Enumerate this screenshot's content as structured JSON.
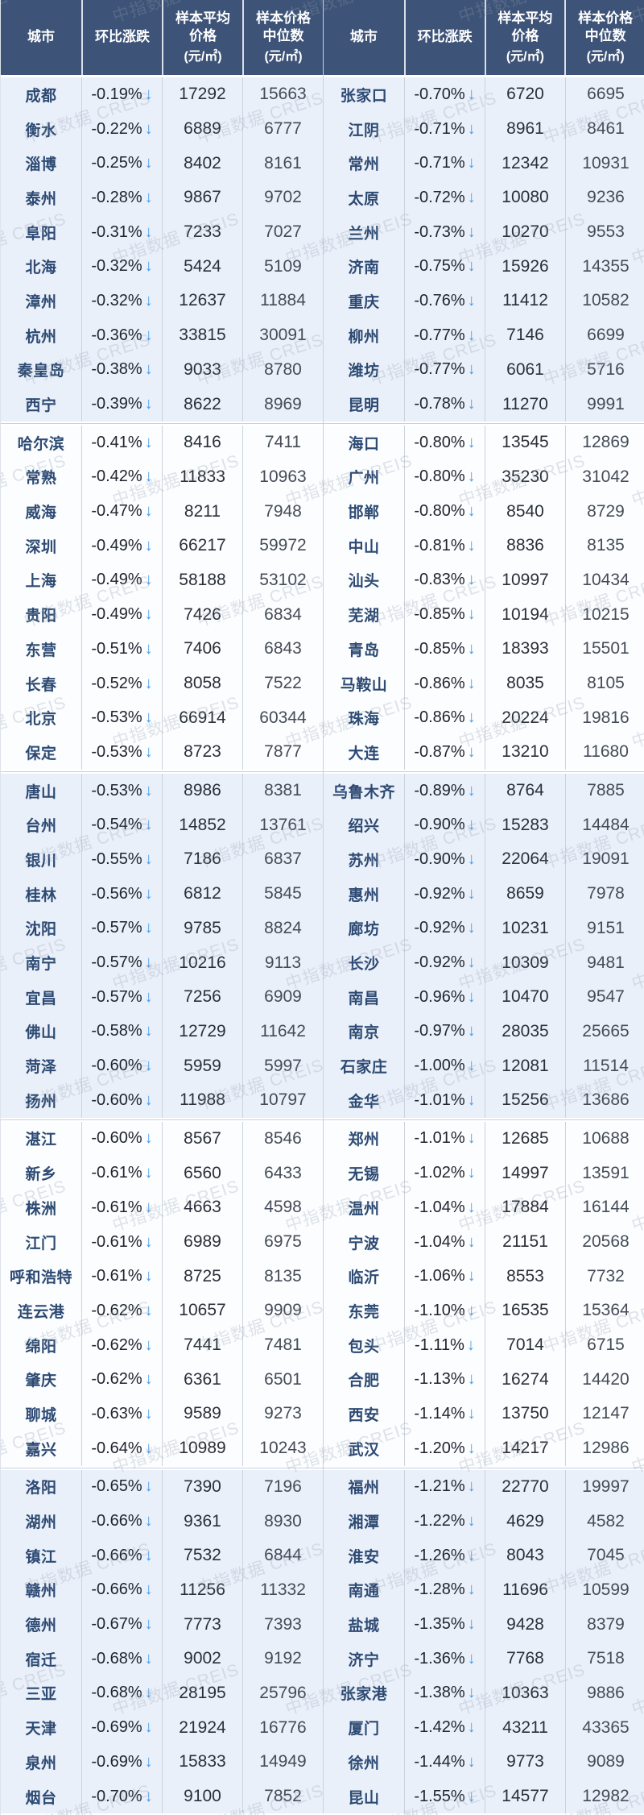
{
  "watermark": "中指数据 CREIS",
  "icons": {
    "down_arrow": "↓"
  },
  "colors": {
    "header_bg": "#3d5378",
    "band_blue": "#eaf0fa",
    "band_white": "#fbfdff",
    "city_text": "#2d4a73",
    "pct_text": "#1f242c",
    "number_text": "#2a2f38",
    "median_text": "#454c57",
    "arrow_blue": "#4a9ce8",
    "watermark_gray": "#93a0b0"
  },
  "header": {
    "city": "城市",
    "change": "环比涨跌",
    "avg_lines": [
      "样本平均",
      "价格",
      "(元/㎡)"
    ],
    "median_lines": [
      "样本价格",
      "中位数",
      "(元/㎡)"
    ]
  },
  "chart_data": {
    "type": "table",
    "columns": [
      "城市",
      "环比涨跌",
      "样本平均价格(元/㎡)",
      "样本价格中位数(元/㎡)"
    ],
    "left_rows": [
      [
        "成都",
        "-0.19%",
        "17292",
        "15663"
      ],
      [
        "衡水",
        "-0.22%",
        "6889",
        "6777"
      ],
      [
        "淄博",
        "-0.25%",
        "8402",
        "8161"
      ],
      [
        "泰州",
        "-0.28%",
        "9867",
        "9702"
      ],
      [
        "阜阳",
        "-0.31%",
        "7233",
        "7027"
      ],
      [
        "北海",
        "-0.32%",
        "5424",
        "5109"
      ],
      [
        "漳州",
        "-0.32%",
        "12637",
        "11884"
      ],
      [
        "杭州",
        "-0.36%",
        "33815",
        "30091"
      ],
      [
        "秦皇岛",
        "-0.38%",
        "9033",
        "8780"
      ],
      [
        "西宁",
        "-0.39%",
        "8622",
        "8969"
      ],
      [
        "哈尔滨",
        "-0.41%",
        "8416",
        "7411"
      ],
      [
        "常熟",
        "-0.42%",
        "11833",
        "10963"
      ],
      [
        "威海",
        "-0.47%",
        "8211",
        "7948"
      ],
      [
        "深圳",
        "-0.49%",
        "66217",
        "59972"
      ],
      [
        "上海",
        "-0.49%",
        "58188",
        "53102"
      ],
      [
        "贵阳",
        "-0.49%",
        "7426",
        "6834"
      ],
      [
        "东营",
        "-0.51%",
        "7406",
        "6843"
      ],
      [
        "长春",
        "-0.52%",
        "8058",
        "7522"
      ],
      [
        "北京",
        "-0.53%",
        "66914",
        "60344"
      ],
      [
        "保定",
        "-0.53%",
        "8723",
        "7877"
      ],
      [
        "唐山",
        "-0.53%",
        "8986",
        "8381"
      ],
      [
        "台州",
        "-0.54%",
        "14852",
        "13761"
      ],
      [
        "银川",
        "-0.55%",
        "7186",
        "6837"
      ],
      [
        "桂林",
        "-0.56%",
        "6812",
        "5845"
      ],
      [
        "沈阳",
        "-0.57%",
        "9785",
        "8824"
      ],
      [
        "南宁",
        "-0.57%",
        "10216",
        "9113"
      ],
      [
        "宜昌",
        "-0.57%",
        "7256",
        "6909"
      ],
      [
        "佛山",
        "-0.58%",
        "12729",
        "11642"
      ],
      [
        "菏泽",
        "-0.60%",
        "5959",
        "5997"
      ],
      [
        "扬州",
        "-0.60%",
        "11988",
        "10797"
      ],
      [
        "湛江",
        "-0.60%",
        "8567",
        "8546"
      ],
      [
        "新乡",
        "-0.61%",
        "6560",
        "6433"
      ],
      [
        "株洲",
        "-0.61%",
        "4663",
        "4598"
      ],
      [
        "江门",
        "-0.61%",
        "6989",
        "6975"
      ],
      [
        "呼和浩特",
        "-0.61%",
        "8725",
        "8135"
      ],
      [
        "连云港",
        "-0.62%",
        "10657",
        "9909"
      ],
      [
        "绵阳",
        "-0.62%",
        "7441",
        "7481"
      ],
      [
        "肇庆",
        "-0.62%",
        "6361",
        "6501"
      ],
      [
        "聊城",
        "-0.63%",
        "9589",
        "9273"
      ],
      [
        "嘉兴",
        "-0.64%",
        "10989",
        "10243"
      ],
      [
        "洛阳",
        "-0.65%",
        "7390",
        "7196"
      ],
      [
        "湖州",
        "-0.66%",
        "9361",
        "8930"
      ],
      [
        "镇江",
        "-0.66%",
        "7532",
        "6844"
      ],
      [
        "赣州",
        "-0.66%",
        "11256",
        "11332"
      ],
      [
        "德州",
        "-0.67%",
        "7773",
        "7393"
      ],
      [
        "宿迁",
        "-0.68%",
        "9002",
        "9192"
      ],
      [
        "三亚",
        "-0.68%",
        "28195",
        "25796"
      ],
      [
        "天津",
        "-0.69%",
        "21924",
        "16776"
      ],
      [
        "泉州",
        "-0.69%",
        "15833",
        "14949"
      ],
      [
        "烟台",
        "-0.70%",
        "9100",
        "7852"
      ]
    ],
    "right_rows": [
      [
        "张家口",
        "-0.70%",
        "6720",
        "6695"
      ],
      [
        "江阴",
        "-0.71%",
        "8961",
        "8461"
      ],
      [
        "常州",
        "-0.71%",
        "12342",
        "10931"
      ],
      [
        "太原",
        "-0.72%",
        "10080",
        "9236"
      ],
      [
        "兰州",
        "-0.73%",
        "10270",
        "9553"
      ],
      [
        "济南",
        "-0.75%",
        "15926",
        "14355"
      ],
      [
        "重庆",
        "-0.76%",
        "11412",
        "10582"
      ],
      [
        "柳州",
        "-0.77%",
        "7146",
        "6699"
      ],
      [
        "潍坊",
        "-0.77%",
        "6061",
        "5716"
      ],
      [
        "昆明",
        "-0.78%",
        "11270",
        "9991"
      ],
      [
        "海口",
        "-0.80%",
        "13545",
        "12869"
      ],
      [
        "广州",
        "-0.80%",
        "35230",
        "31042"
      ],
      [
        "邯郸",
        "-0.80%",
        "8540",
        "8729"
      ],
      [
        "中山",
        "-0.81%",
        "8836",
        "8135"
      ],
      [
        "汕头",
        "-0.83%",
        "10997",
        "10434"
      ],
      [
        "芜湖",
        "-0.85%",
        "10194",
        "10215"
      ],
      [
        "青岛",
        "-0.85%",
        "18393",
        "15501"
      ],
      [
        "马鞍山",
        "-0.86%",
        "8035",
        "8105"
      ],
      [
        "珠海",
        "-0.86%",
        "20224",
        "19816"
      ],
      [
        "大连",
        "-0.87%",
        "13210",
        "11680"
      ],
      [
        "乌鲁木齐",
        "-0.89%",
        "8764",
        "7885"
      ],
      [
        "绍兴",
        "-0.90%",
        "15283",
        "14484"
      ],
      [
        "苏州",
        "-0.90%",
        "22064",
        "19091"
      ],
      [
        "惠州",
        "-0.92%",
        "8659",
        "7978"
      ],
      [
        "廊坊",
        "-0.92%",
        "10231",
        "9151"
      ],
      [
        "长沙",
        "-0.92%",
        "10309",
        "9481"
      ],
      [
        "南昌",
        "-0.96%",
        "10470",
        "9547"
      ],
      [
        "南京",
        "-0.97%",
        "28035",
        "25665"
      ],
      [
        "石家庄",
        "-1.00%",
        "12081",
        "11514"
      ],
      [
        "金华",
        "-1.01%",
        "15256",
        "13686"
      ],
      [
        "郑州",
        "-1.01%",
        "12685",
        "10688"
      ],
      [
        "无锡",
        "-1.02%",
        "14997",
        "13591"
      ],
      [
        "温州",
        "-1.04%",
        "17884",
        "16144"
      ],
      [
        "宁波",
        "-1.04%",
        "21151",
        "20568"
      ],
      [
        "临沂",
        "-1.06%",
        "8553",
        "7732"
      ],
      [
        "东莞",
        "-1.10%",
        "16535",
        "15364"
      ],
      [
        "包头",
        "-1.11%",
        "7014",
        "6715"
      ],
      [
        "合肥",
        "-1.13%",
        "16274",
        "14420"
      ],
      [
        "西安",
        "-1.14%",
        "13750",
        "12147"
      ],
      [
        "武汉",
        "-1.20%",
        "14217",
        "12986"
      ],
      [
        "福州",
        "-1.21%",
        "22770",
        "19997"
      ],
      [
        "湘潭",
        "-1.22%",
        "4629",
        "4582"
      ],
      [
        "淮安",
        "-1.26%",
        "8043",
        "7045"
      ],
      [
        "南通",
        "-1.28%",
        "11696",
        "10599"
      ],
      [
        "盐城",
        "-1.35%",
        "9428",
        "8379"
      ],
      [
        "济宁",
        "-1.36%",
        "7768",
        "7518"
      ],
      [
        "张家港",
        "-1.38%",
        "10363",
        "9886"
      ],
      [
        "厦门",
        "-1.42%",
        "43211",
        "43365"
      ],
      [
        "徐州",
        "-1.44%",
        "9773",
        "9089"
      ],
      [
        "昆山",
        "-1.55%",
        "14577",
        "12982"
      ]
    ]
  }
}
